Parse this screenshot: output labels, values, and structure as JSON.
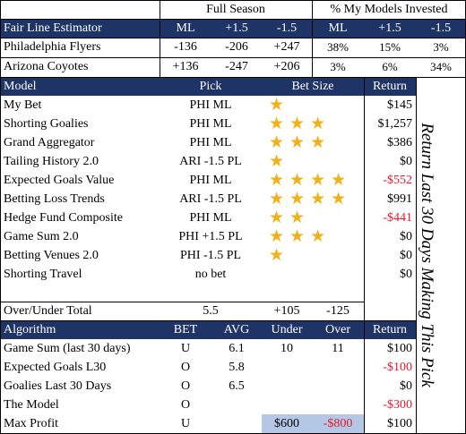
{
  "top_header": {
    "full_season": "Full Season",
    "pct_invested": "% My Models Invested"
  },
  "fair_line": {
    "title": "Fair Line Estimator",
    "cols": [
      "ML",
      "+1.5",
      "-1.5",
      "ML",
      "+1.5",
      "-1.5"
    ],
    "rows": [
      {
        "team": "Philadelphia Flyers",
        "vals": [
          "-136",
          "-206",
          "+247",
          "38%",
          "15%",
          "3%"
        ]
      },
      {
        "team": "Arizona Coyotes",
        "vals": [
          "+136",
          "-247",
          "+206",
          "3%",
          "6%",
          "34%"
        ]
      }
    ]
  },
  "models": {
    "headers": {
      "model": "Model",
      "pick": "Pick",
      "bet_size": "Bet Size",
      "return": "Return"
    },
    "rows": [
      {
        "name": "My Bet",
        "pick": "PHI ML",
        "stars": 1,
        "ret": "$145",
        "neg": false
      },
      {
        "name": "Shorting Goalies",
        "pick": "PHI ML",
        "stars": 3,
        "ret": "$1,257",
        "neg": false
      },
      {
        "name": "Grand Aggregator",
        "pick": "PHI ML",
        "stars": 3,
        "ret": "$386",
        "neg": false
      },
      {
        "name": "Tailing History 2.0",
        "pick": "ARI -1.5 PL",
        "stars": 1,
        "ret": "$0",
        "neg": false
      },
      {
        "name": "Expected Goals Value",
        "pick": "PHI ML",
        "stars": 4,
        "ret": "-$552",
        "neg": true
      },
      {
        "name": "Betting Loss Trends",
        "pick": "ARI -1.5 PL",
        "stars": 4,
        "ret": "$991",
        "neg": false
      },
      {
        "name": "Hedge Fund Composite",
        "pick": "PHI ML",
        "stars": 2,
        "ret": "-$441",
        "neg": true
      },
      {
        "name": "Game Sum 2.0",
        "pick": "PHI +1.5 PL",
        "stars": 3,
        "ret": "$0",
        "neg": false
      },
      {
        "name": "Betting Venues 2.0",
        "pick": "PHI -1.5 PL",
        "stars": 1,
        "ret": "$0",
        "neg": false
      },
      {
        "name": "Shorting Travel",
        "pick": "no bet",
        "stars": 0,
        "ret": "$0",
        "neg": false
      }
    ]
  },
  "side_text": "Return Last 30 Days Making This Pick",
  "over_under": {
    "label": "Over/Under Total",
    "total": "5.5",
    "over_line": "+105",
    "under_line": "-125"
  },
  "algorithms": {
    "headers": {
      "algorithm": "Algorithm",
      "bet": "BET",
      "avg": "AVG",
      "under": "Under",
      "over": "Over",
      "return": "Return"
    },
    "rows": [
      {
        "name": "Game Sum (last 30 days)",
        "bet": "U",
        "avg": "6.1",
        "under": "10",
        "over": "11",
        "ret": "$100",
        "neg": false
      },
      {
        "name": "Expected Goals L30",
        "bet": "O",
        "avg": "5.8",
        "under": "",
        "over": "",
        "ret": "-$100",
        "neg": true
      },
      {
        "name": "Goalies Last 30 Days",
        "bet": "O",
        "avg": "6.5",
        "under": "",
        "over": "",
        "ret": "$0",
        "neg": false
      },
      {
        "name": "The Model",
        "bet": "O",
        "avg": "",
        "under": "",
        "over": "",
        "ret": "-$300",
        "neg": true
      },
      {
        "name": "Max Profit",
        "bet": "U",
        "avg": "",
        "under": "$600",
        "over": "-$800",
        "ret": "$100",
        "neg": false
      }
    ]
  },
  "colors": {
    "header_navy": "#1f3466",
    "star": "#f2b11a",
    "negative": "#e8182a",
    "highlight": "#b4c8e6"
  }
}
